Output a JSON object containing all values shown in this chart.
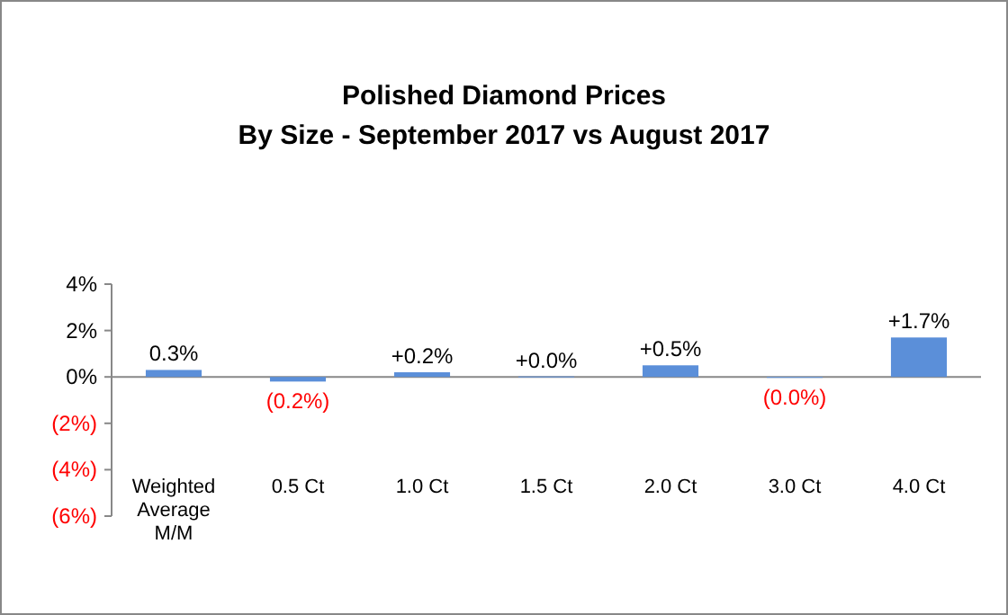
{
  "chart_data": {
    "type": "bar",
    "title": "Polished Diamond Prices",
    "subtitle": "By Size - September 2017 vs August 2017",
    "categories": [
      "Weighted Average M/M",
      "0.5 Ct",
      "1.0 Ct",
      "1.5 Ct",
      "2.0 Ct",
      "3.0 Ct",
      "4.0 Ct"
    ],
    "values": [
      0.3,
      -0.2,
      0.2,
      0.02,
      0.5,
      -0.02,
      1.7
    ],
    "value_labels": [
      "0.3%",
      "(0.2%)",
      "+0.2%",
      "+0.0%",
      "+0.5%",
      "(0.0%)",
      "+1.7%"
    ],
    "color": "#5b8fd9",
    "ylim": [
      -6,
      4
    ],
    "yticks": [
      {
        "value": 4,
        "label": "4%"
      },
      {
        "value": 2,
        "label": "2%"
      },
      {
        "value": 0,
        "label": "0%"
      },
      {
        "value": -2,
        "label": "(2%)"
      },
      {
        "value": -4,
        "label": "(4%)"
      },
      {
        "value": -6,
        "label": "(6%)"
      }
    ]
  }
}
